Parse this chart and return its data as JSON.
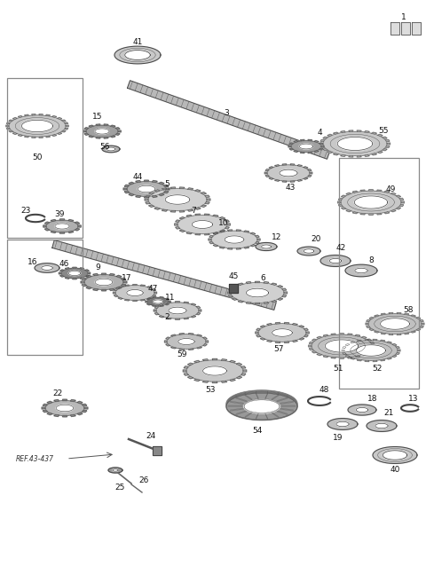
{
  "bg_color": "#ffffff",
  "line_color": "#444444",
  "gray1": "#cccccc",
  "gray2": "#aaaaaa",
  "gray3": "#888888",
  "gray4": "#666666",
  "dark": "#333333"
}
